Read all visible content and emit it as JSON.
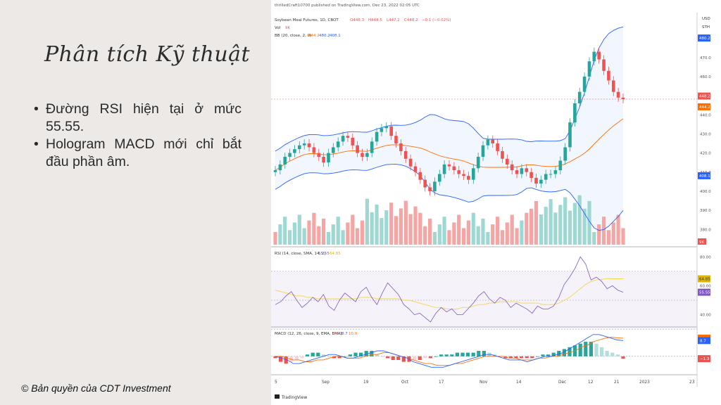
{
  "slide": {
    "title": "Phân tích Kỹ thuật",
    "bullets": [
      "Đường RSI hiện tại ở mức 55.55.",
      "Hologram MACD mới chỉ bắt đầu phần âm."
    ],
    "copyright": "© Bản quyền của CDT Investment"
  },
  "chart_header": {
    "published": "thrilledCraft10700 published on TradingView.com, Dec 23, 2022 02:05 UTC",
    "symbol": "Soybean Meal Futures, 1D, CBOT",
    "ohlc": {
      "o": "O448.3",
      "h": "H448.5",
      "l": "L447.2",
      "c": "C448.2",
      "chg": "−0.1 (−0.02%)"
    },
    "vol_label": "Vol",
    "vol_value": "9K",
    "bb_label": "BB (20, close, 2, 0)",
    "bb_values": [
      "444.2",
      "480.2",
      "408.1"
    ],
    "currency": "USD",
    "unit": "STH",
    "last_price": "448.2",
    "countdown": "17:24:36",
    "tv_brand": "TradingView"
  },
  "rsi_header": {
    "label": "RSI (14, close, SMA, 14, 2)",
    "v1": "55.55",
    "v2": "64.85"
  },
  "macd_header": {
    "label": "MACD (12, 26, close, 9, EMA, EMA)",
    "v1": "−1.3",
    "v2": "8.7",
    "v3": "10.0"
  },
  "colors": {
    "up": "#26a69a",
    "down": "#ef5350",
    "bb_band": "#2962ff",
    "bb_basis": "#ff6d00",
    "rsi": "#7e57c2",
    "rsi_ma": "#f2d64b",
    "macd": "#2962ff",
    "signal": "#ff6d00"
  },
  "chart_data": [
    {
      "type": "line",
      "title": "Soybean Meal Futures, 1D, CBOT",
      "x_tick_labels": [
        "5",
        "Sep",
        "19",
        "Oct",
        "17",
        "Nov",
        "14",
        "Dec",
        "12",
        "21",
        "2023",
        "23"
      ],
      "y_tick_labels": [
        "470.0",
        "460.0",
        "440.0",
        "430.0",
        "420.0",
        "410.0",
        "400.0",
        "390.0",
        "380.0"
      ],
      "ylim": [
        372,
        492
      ],
      "price_labels": [
        "480.2",
        "448.2",
        "444.2",
        "408.1",
        "9K"
      ],
      "close": [
        411,
        414,
        418,
        420,
        422,
        424,
        425,
        423,
        420,
        418,
        415,
        420,
        423,
        426,
        429,
        428,
        424,
        420,
        418,
        420,
        426,
        431,
        433,
        434,
        429,
        425,
        421,
        417,
        413,
        410,
        406,
        402,
        400,
        405,
        409,
        414,
        413,
        411,
        409,
        408,
        406,
        412,
        418,
        424,
        427,
        425,
        421,
        417,
        414,
        411,
        409,
        412,
        410,
        407,
        404,
        406,
        409,
        409,
        411,
        416,
        423,
        436,
        446,
        452,
        460,
        468,
        473,
        469,
        463,
        458,
        452,
        449,
        448.2
      ]
    },
    {
      "type": "line",
      "title": "RSI (14, close, SMA, 14, 2)",
      "y_tick_labels": [
        "80.00",
        "64.85",
        "60.00",
        "55.55",
        "40.00"
      ],
      "ylim": [
        33,
        85
      ],
      "rsi": [
        47,
        49,
        53,
        56,
        50,
        45,
        48,
        52,
        49,
        54,
        46,
        43,
        50,
        55,
        52,
        49,
        56,
        59,
        52,
        47,
        55,
        62,
        58,
        54,
        47,
        44,
        40,
        41,
        38,
        35,
        41,
        45,
        42,
        44,
        40,
        40,
        44,
        48,
        53,
        56,
        51,
        48,
        52,
        50,
        45,
        48,
        46,
        44,
        41,
        46,
        44,
        44,
        46,
        52,
        61,
        66,
        72,
        80,
        75,
        64,
        66,
        63,
        58,
        60,
        57,
        55.55
      ],
      "rsi_ma": [
        57,
        56,
        55,
        54,
        53,
        53,
        52,
        52,
        51,
        51,
        51,
        51,
        51,
        51,
        51,
        51,
        52,
        52,
        52,
        51,
        51,
        51,
        51,
        51,
        50,
        50,
        49,
        48,
        47,
        46,
        45,
        45,
        44,
        44,
        44,
        45,
        45,
        46,
        47,
        47,
        48,
        48,
        49,
        49,
        49,
        49,
        48,
        48,
        48,
        48,
        47,
        47,
        47,
        48,
        50,
        52,
        55,
        58,
        61,
        63,
        64,
        64.5,
        65,
        64.85,
        64.85,
        64.85
      ]
    },
    {
      "type": "bar",
      "title": "MACD (12, 26, close, 9, EMA, EMA)",
      "y_tick_labels": [
        "10.0",
        "8.7",
        "−1.3"
      ],
      "ylim": [
        -9,
        15
      ],
      "histogram": [
        -1,
        -3,
        -4,
        -3,
        -2,
        -1,
        1,
        2,
        2,
        1,
        0,
        -1,
        -1,
        0,
        1,
        2,
        2,
        3,
        3,
        1,
        0,
        -1,
        -2,
        -2,
        -3,
        -3,
        -2,
        -2,
        -1,
        -1,
        0,
        1,
        1,
        1,
        2,
        2,
        2,
        2,
        3,
        3,
        2,
        1,
        0,
        -1,
        -1,
        -1,
        -1,
        -1,
        -1,
        0,
        1,
        1,
        2,
        3,
        4,
        5,
        6,
        7,
        8,
        8,
        7,
        5,
        3,
        2,
        1,
        -1.3
      ],
      "macd": [
        0,
        -1,
        -2,
        -4,
        -4,
        -3,
        -2,
        -1,
        0,
        1,
        1,
        0,
        -1,
        -1,
        0,
        1,
        2,
        3,
        3,
        2,
        1,
        0,
        -1,
        -3,
        -4,
        -5,
        -6,
        -6,
        -6,
        -5,
        -4,
        -3,
        -2,
        -1,
        0,
        1,
        1,
        0,
        -1,
        -2,
        -2,
        -2,
        -3,
        -2,
        -1,
        0,
        0,
        1,
        2,
        4,
        6,
        8,
        10,
        12,
        12,
        11,
        10,
        9,
        8.7
      ],
      "signal": [
        0,
        0,
        -1,
        -2,
        -2,
        -3,
        -3,
        -2,
        -2,
        -1,
        0,
        0,
        -1,
        -1,
        -1,
        0,
        1,
        1,
        2,
        2,
        1,
        0,
        -1,
        -2,
        -3,
        -4,
        -4,
        -5,
        -5,
        -5,
        -4,
        -4,
        -3,
        -2,
        -1,
        0,
        0,
        0,
        0,
        -1,
        -1,
        -2,
        -2,
        -2,
        -1,
        -1,
        0,
        0,
        1,
        2,
        3,
        5,
        6,
        8,
        9,
        10,
        10.5,
        10.2,
        10.0
      ]
    }
  ]
}
